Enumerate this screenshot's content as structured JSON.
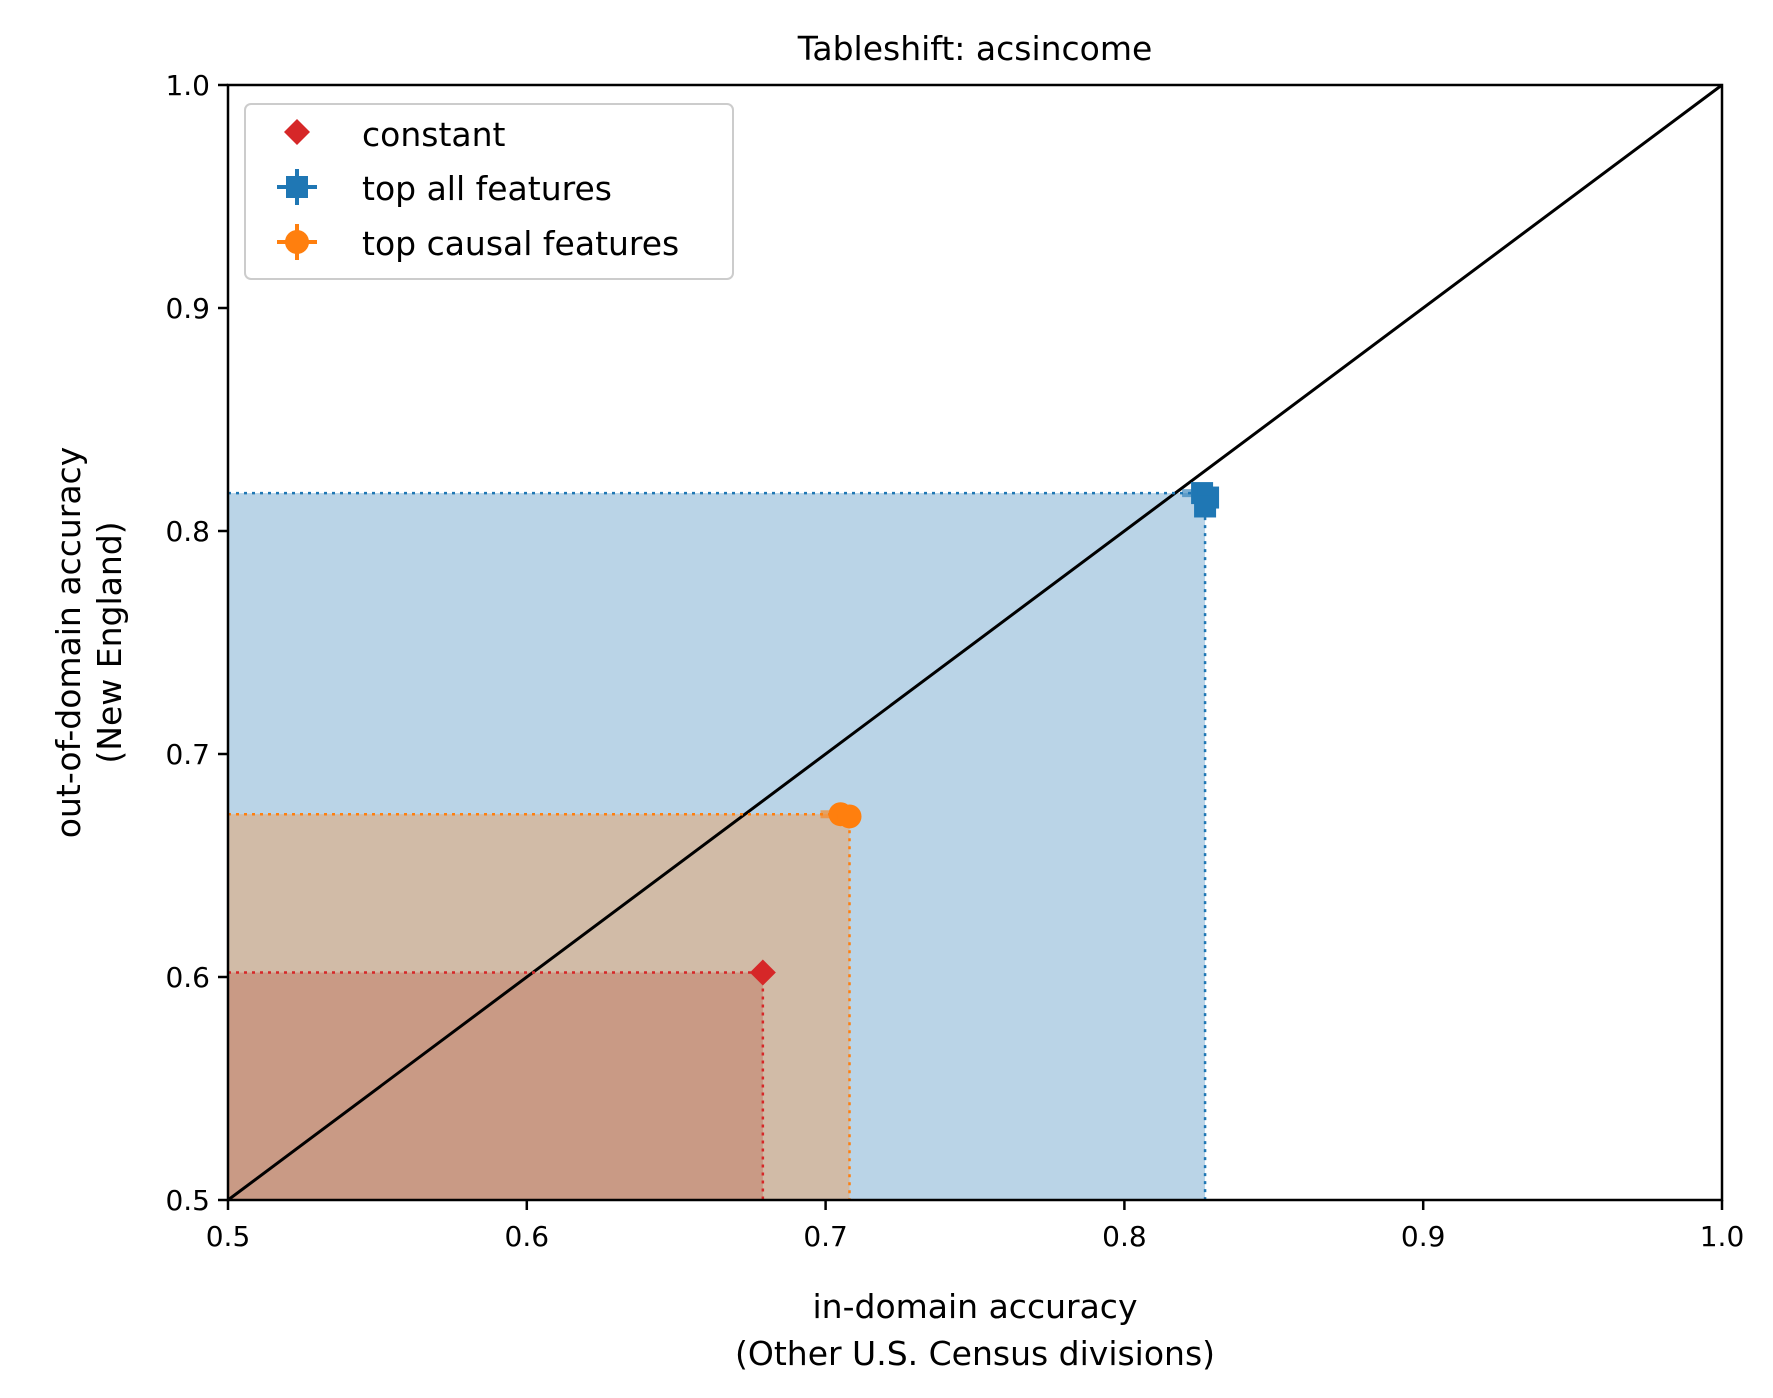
{
  "chart_data": {
    "type": "scatter",
    "title": "Tableshift: acsincome",
    "xlabel_lines": [
      "in-domain accuracy",
      "(Other U.S. Census divisions)"
    ],
    "ylabel_lines": [
      "out-of-domain accuracy",
      "(New England)"
    ],
    "xlim": [
      0.5,
      1.0
    ],
    "ylim": [
      0.5,
      1.0
    ],
    "x_ticks": [
      0.5,
      0.6,
      0.7,
      0.8,
      0.9,
      1.0
    ],
    "y_ticks": [
      0.5,
      0.6,
      0.7,
      0.8,
      0.9,
      1.0
    ],
    "x_tick_labels": [
      "0.5",
      "0.6",
      "0.7",
      "0.8",
      "0.9",
      "1.0"
    ],
    "y_tick_labels": [
      "0.5",
      "0.6",
      "0.7",
      "0.8",
      "0.9",
      "1.0"
    ],
    "grid": false,
    "legend_position": "top-left",
    "diagonal": {
      "from": [
        0.5,
        0.5
      ],
      "to": [
        1.0,
        1.0
      ],
      "color": "#000000"
    },
    "series": [
      {
        "name": "constant",
        "marker": "diamond",
        "color": "#d62728",
        "fill": "#c99a85",
        "points": [
          [
            0.679,
            0.602
          ]
        ],
        "box": [
          0.679,
          0.602
        ]
      },
      {
        "name": "top causal features",
        "marker": "circle",
        "color": "#ff7f0e",
        "fill": "#d1bba7",
        "points": [
          [
            0.705,
            0.673
          ],
          [
            0.708,
            0.672
          ]
        ],
        "box": [
          0.708,
          0.673
        ]
      },
      {
        "name": "top all features",
        "marker": "square",
        "color": "#1f77b4",
        "fill": "#bad4e7",
        "points": [
          [
            0.826,
            0.817
          ],
          [
            0.828,
            0.815
          ],
          [
            0.827,
            0.811
          ]
        ],
        "box": [
          0.827,
          0.817
        ]
      }
    ],
    "legend_order": [
      "constant",
      "top all features",
      "top causal features"
    ]
  }
}
